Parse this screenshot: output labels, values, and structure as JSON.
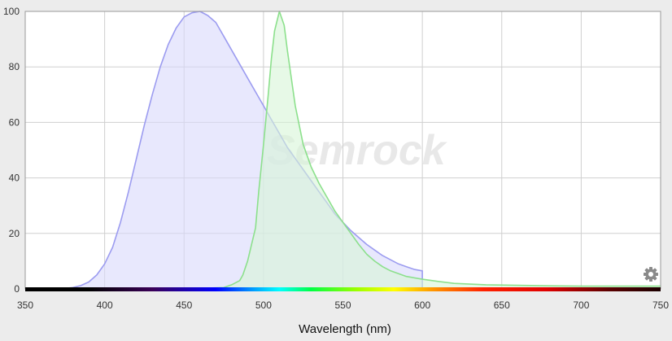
{
  "watermark": "Semrock",
  "settings_icon": "gear-icon",
  "chart_data": {
    "type": "area",
    "title": "",
    "xlabel": "Wavelength (nm)",
    "ylabel": "",
    "xlim": [
      350,
      750
    ],
    "ylim": [
      0,
      100
    ],
    "xticks": [
      350,
      400,
      450,
      500,
      550,
      600,
      650,
      700,
      750
    ],
    "yticks": [
      0,
      20,
      40,
      60,
      80,
      100
    ],
    "grid": true,
    "legend": "none",
    "spectrum_bar": true,
    "series": [
      {
        "color": "#9c9cf0",
        "fill": "#d9d9fc",
        "x": [
          372,
          380,
          385,
          390,
          395,
          400,
          405,
          410,
          415,
          420,
          425,
          430,
          435,
          440,
          445,
          450,
          455,
          460,
          465,
          470,
          475,
          480,
          485,
          490,
          495,
          500,
          505,
          510,
          515,
          520,
          525,
          530,
          535,
          540,
          545,
          550,
          555,
          560,
          565,
          570,
          575,
          580,
          585,
          590,
          595,
          600,
          600,
          750
        ],
        "y": [
          0,
          0.5,
          1.2,
          2.5,
          5,
          9,
          15,
          24,
          35,
          47,
          59,
          70,
          80,
          88,
          94,
          98,
          99.5,
          100,
          98.5,
          96,
          91,
          86,
          81,
          76,
          71,
          66,
          61,
          56,
          51,
          47,
          43,
          39,
          35,
          31,
          27,
          24,
          21,
          18.5,
          16,
          14,
          12,
          10.5,
          9,
          8,
          7,
          6.5,
          0,
          0
        ]
      },
      {
        "color": "#8ce08c",
        "fill": "#d7f5d7",
        "x": [
          350,
          450,
          475,
          480,
          485,
          487,
          490,
          495,
          497,
          500,
          503,
          505,
          507,
          510,
          513,
          515,
          520,
          525,
          530,
          535,
          540,
          545,
          550,
          555,
          560,
          565,
          570,
          575,
          580,
          590,
          600,
          610,
          620,
          640,
          660,
          680,
          700,
          720,
          750
        ],
        "y": [
          0,
          0,
          0.5,
          1.5,
          3,
          5,
          10,
          22,
          35,
          52,
          70,
          83,
          93,
          100,
          95,
          86,
          66,
          52,
          44,
          38,
          33,
          28,
          24,
          20,
          16,
          12.5,
          10,
          8,
          6.5,
          4.5,
          3.5,
          2.7,
          2,
          1.5,
          1.3,
          1.1,
          1,
          1,
          1
        ]
      }
    ]
  }
}
